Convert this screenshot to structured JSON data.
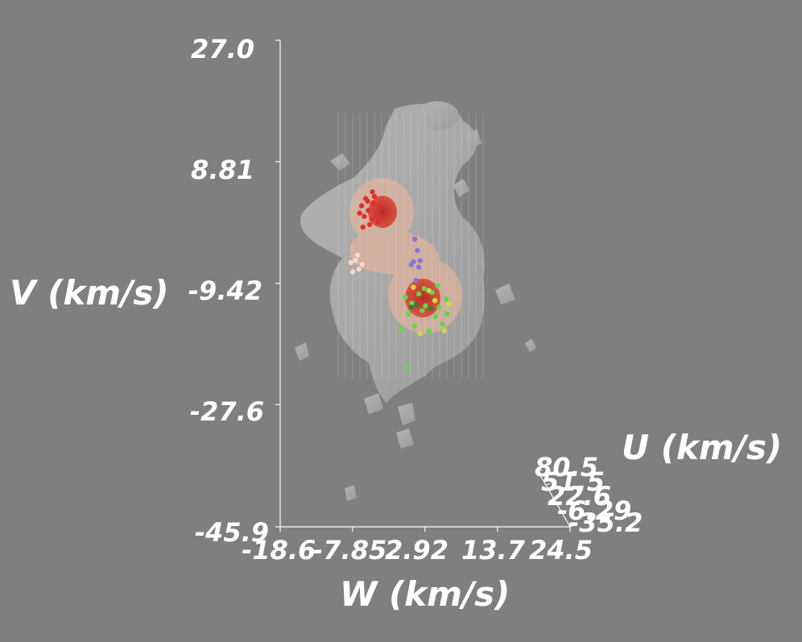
{
  "chart_data": {
    "type": "scatter",
    "title": "",
    "axes": {
      "V": {
        "label": "V (km/s)",
        "ticks": [
          "27.0",
          "8.81",
          "-9.42",
          "-27.6",
          "-45.9"
        ],
        "range": [
          -45.9,
          27.0
        ]
      },
      "W": {
        "label": "W (km/s)",
        "ticks": [
          "-18.6",
          "-7.85",
          "2.92",
          "13.7",
          "24.5"
        ],
        "range": [
          -18.6,
          24.5
        ]
      },
      "U": {
        "label": "U (km/s)",
        "ticks": [
          "80.5",
          "51.5",
          "22.6",
          "-6.29",
          "-35.2"
        ],
        "range": [
          -35.2,
          80.5
        ]
      }
    },
    "isosurface_colors": {
      "outer": "#d9d9d9",
      "middle": "#f2b89a",
      "inner": "#cc2b22"
    },
    "series": [
      {
        "color": "#e0302a",
        "points": [
          [
            -6.5,
            2.2
          ],
          [
            -5.5,
            1.5
          ],
          [
            -4.8,
            2.6
          ],
          [
            -6.1,
            0.6
          ],
          [
            -5.0,
            0.2
          ],
          [
            -4.2,
            1.0
          ],
          [
            -5.9,
            3.3
          ],
          [
            -4.6,
            3.6
          ],
          [
            -6.8,
            1.1
          ],
          [
            -3.9,
            2.2
          ],
          [
            -5.3,
            -0.6
          ],
          [
            -6.3,
            -1.0
          ],
          [
            -4.9,
            4.3
          ],
          [
            -5.6,
            2.9
          ],
          [
            -4.1,
            -0.2
          ]
        ]
      },
      {
        "color": "#ffd7c8",
        "points": [
          [
            -8.1,
            -6.3
          ],
          [
            -7.4,
            -6.0
          ],
          [
            -6.9,
            -7.3
          ],
          [
            -7.8,
            -7.7
          ],
          [
            -6.4,
            -6.6
          ],
          [
            -7.1,
            -5.2
          ]
        ]
      },
      {
        "color": "#8a73d6",
        "points": [
          [
            1.4,
            -2.8
          ],
          [
            1.8,
            -4.5
          ],
          [
            1.2,
            -6.2
          ],
          [
            2.0,
            -7.0
          ],
          [
            1.6,
            -9.0
          ],
          [
            0.9,
            -6.6
          ],
          [
            2.2,
            -6.0
          ]
        ]
      },
      {
        "color": "#5fd94a",
        "points": [
          [
            0.0,
            -11.5
          ],
          [
            1.0,
            -12.4
          ],
          [
            2.0,
            -11.0
          ],
          [
            3.0,
            -12.8
          ],
          [
            4.0,
            -10.8
          ],
          [
            5.0,
            -13.0
          ],
          [
            6.1,
            -11.8
          ],
          [
            0.5,
            -14.0
          ],
          [
            2.5,
            -13.5
          ],
          [
            4.5,
            -14.4
          ],
          [
            5.5,
            -15.5
          ],
          [
            1.4,
            -15.8
          ],
          [
            3.5,
            -16.6
          ],
          [
            6.2,
            -14.0
          ],
          [
            -0.6,
            -16.4
          ],
          [
            2.8,
            -10.2
          ],
          [
            4.8,
            -9.8
          ],
          [
            0.2,
            -22.0
          ]
        ]
      },
      {
        "color": "#cfd94a",
        "points": [
          [
            3.5,
            -10.5
          ],
          [
            6.5,
            -12.5
          ],
          [
            5.8,
            -16.5
          ],
          [
            2.2,
            -17.0
          ],
          [
            4.4,
            -12.0
          ],
          [
            1.2,
            -10.0
          ]
        ]
      },
      {
        "color": "#3e7a2c",
        "points": [
          [
            1.6,
            -12.6
          ],
          [
            3.8,
            -13.2
          ],
          [
            0.9,
            -13.0
          ]
        ]
      }
    ]
  }
}
